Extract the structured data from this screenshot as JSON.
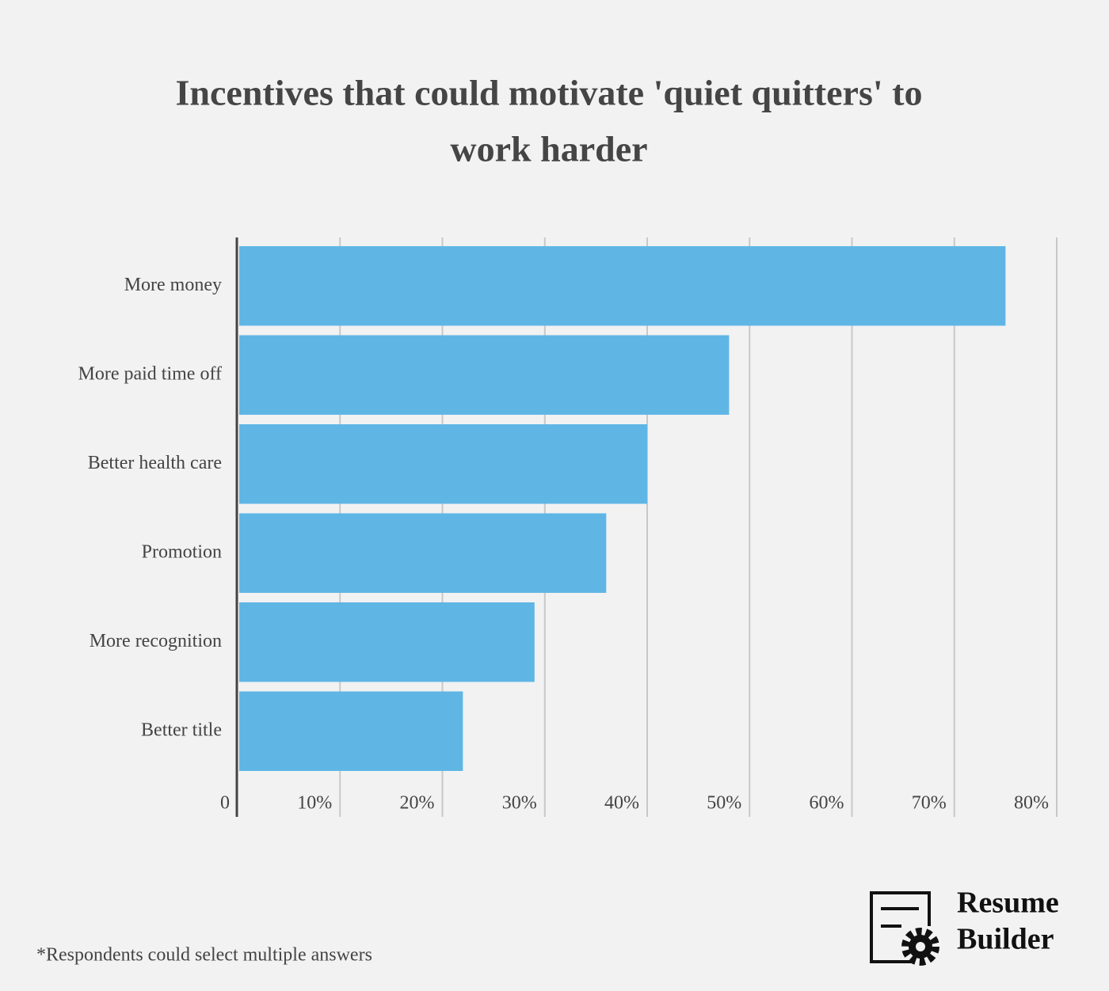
{
  "chart_data": {
    "type": "bar",
    "orientation": "horizontal",
    "title": "Incentives that could motivate 'quiet quitters' to work harder",
    "categories": [
      "More money",
      "More paid time off",
      "Better health care",
      "Promotion",
      "More recognition",
      "Better title"
    ],
    "values": [
      75,
      48,
      40,
      36,
      29,
      22
    ],
    "color": "#5fb6e5",
    "xlim": [
      0,
      80
    ],
    "xticks": [
      0,
      {
        "value": 10,
        "label": "10%"
      },
      {
        "value": 20,
        "label": "20%"
      },
      {
        "value": 30,
        "label": "30%"
      },
      {
        "value": 40,
        "label": "40%"
      },
      {
        "value": 50,
        "label": "50%"
      },
      {
        "value": 60,
        "label": "60%"
      },
      {
        "value": 70,
        "label": "70%"
      },
      {
        "value": 80,
        "label": "80%"
      }
    ],
    "grid": true,
    "footnote": "*Respondents could select multiple answers"
  },
  "logo_text": [
    "Resume",
    "Builder"
  ]
}
